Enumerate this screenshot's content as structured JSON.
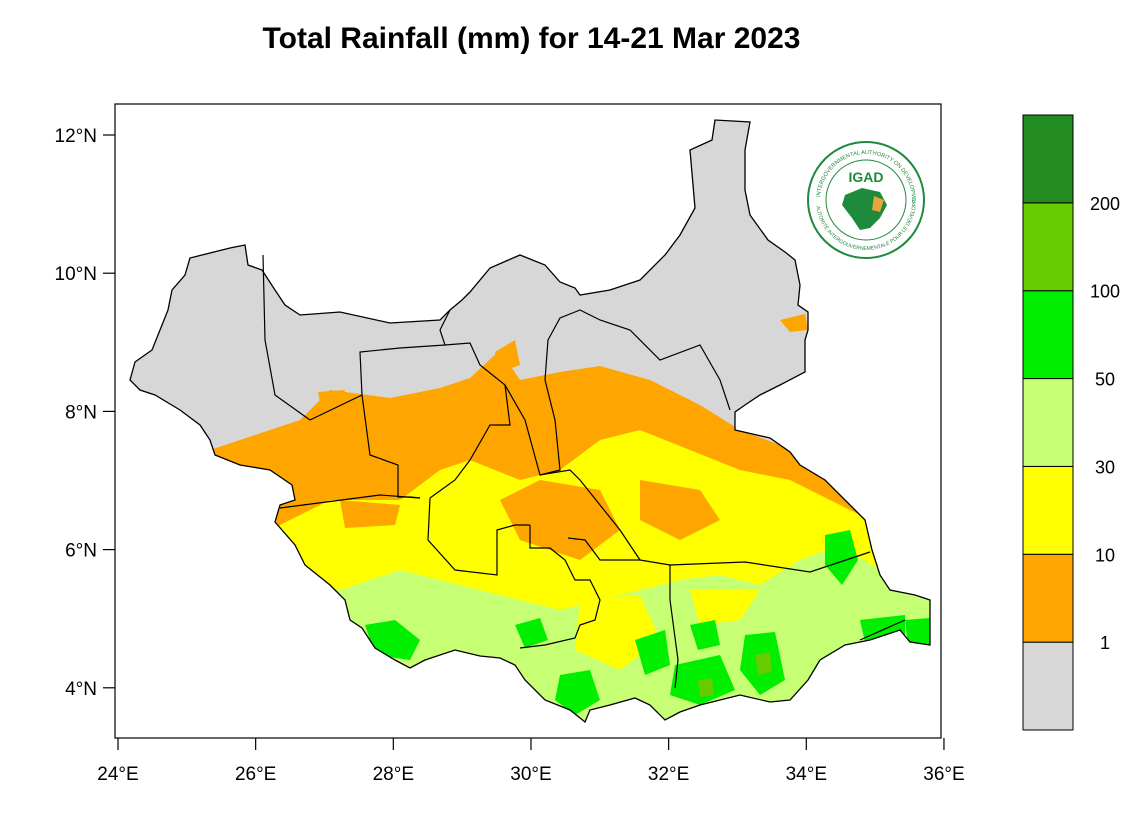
{
  "title": "Total Rainfall (mm) for 14-21 Mar 2023",
  "map": {
    "lon_range": [
      24,
      36
    ],
    "lat_range": [
      3.3,
      12.5
    ],
    "x_ticks": [
      {
        "lon": 24,
        "label": "24°E"
      },
      {
        "lon": 26,
        "label": "26°E"
      },
      {
        "lon": 28,
        "label": "28°E"
      },
      {
        "lon": 30,
        "label": "30°E"
      },
      {
        "lon": 32,
        "label": "32°E"
      },
      {
        "lon": 34,
        "label": "34°E"
      },
      {
        "lon": 36,
        "label": "36°E"
      }
    ],
    "y_ticks": [
      {
        "lat": 12,
        "label": "12°N"
      },
      {
        "lat": 10,
        "label": "10°N"
      },
      {
        "lat": 8,
        "label": "8°N"
      },
      {
        "lat": 6,
        "label": "6°N"
      },
      {
        "lat": 4,
        "label": "4°N"
      }
    ]
  },
  "legend": {
    "classes": [
      {
        "range": "< 1",
        "color": "#d7d7d7"
      },
      {
        "range": "1-10",
        "color": "#ffa500"
      },
      {
        "range": "10-30",
        "color": "#ffff00"
      },
      {
        "range": "30-50",
        "color": "#c6ff73"
      },
      {
        "range": "50-100",
        "color": "#00ee00"
      },
      {
        "range": "100-200",
        "color": "#66cc00"
      },
      {
        "range": "> 200",
        "color": "#228b22"
      }
    ],
    "labels": [
      "1",
      "10",
      "30",
      "50",
      "100",
      "200"
    ]
  },
  "logo": {
    "text": "IGAD",
    "ring_text_top": "INTERGOVERNMENTAL AUTHORITY ON DEVELOPMENT",
    "ring_text_bottom": "AUTORITÉ INTERGOUVERNEMENTALE POUR LE DÉVELOPPEMENT",
    "color": "#1e8a3c"
  }
}
